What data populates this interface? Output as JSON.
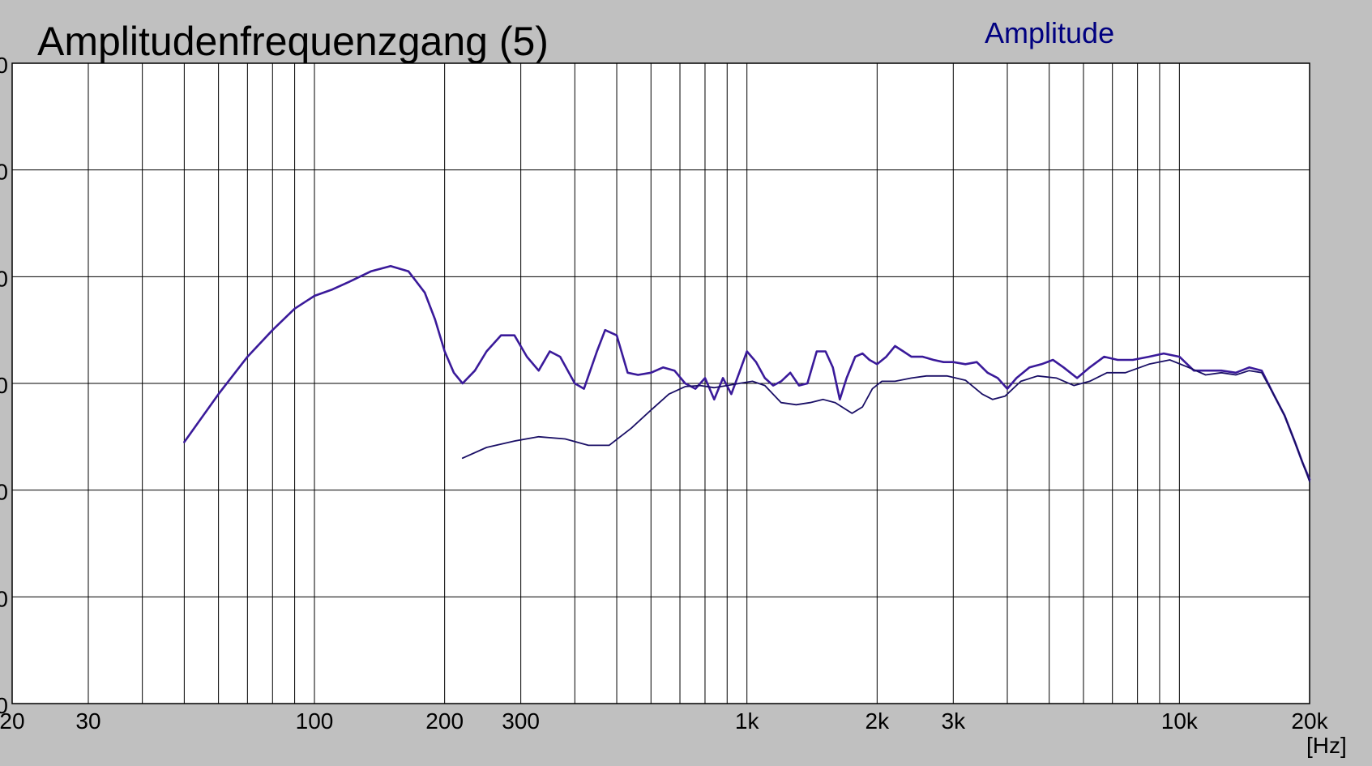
{
  "chart_data": {
    "type": "line",
    "title": "Amplitudenfrequenzgang (5)",
    "x_unit_label": "[Hz]",
    "x_scale": "log",
    "xlim": [
      20,
      20000
    ],
    "ylim": [
      0,
      6
    ],
    "y_tick_labels_visible": [
      "0",
      "0",
      "0",
      "0",
      "0",
      "0",
      "0"
    ],
    "x_ticks": [
      {
        "value": 20,
        "label": "20"
      },
      {
        "value": 30,
        "label": "30"
      },
      {
        "value": 100,
        "label": "100"
      },
      {
        "value": 200,
        "label": "200"
      },
      {
        "value": 300,
        "label": "300"
      },
      {
        "value": 1000,
        "label": "1k"
      },
      {
        "value": 2000,
        "label": "2k"
      },
      {
        "value": 3000,
        "label": "3k"
      },
      {
        "value": 10000,
        "label": "10k"
      },
      {
        "value": 20000,
        "label": "20k"
      }
    ],
    "grid": true,
    "legend": {
      "position": "top-right",
      "entries": [
        "Amplitude"
      ]
    },
    "colors": {
      "background": "#c0c0c0",
      "plot_bg": "#ffffff",
      "grid": "#000000",
      "line": "#3a1a9a",
      "legend": "#000080"
    },
    "series": [
      {
        "name": "Amplitude",
        "color": "#3a1a9a",
        "width": 2.6,
        "points": [
          [
            50,
            2.45
          ],
          [
            60,
            2.9
          ],
          [
            70,
            3.25
          ],
          [
            80,
            3.5
          ],
          [
            90,
            3.7
          ],
          [
            100,
            3.82
          ],
          [
            110,
            3.88
          ],
          [
            120,
            3.95
          ],
          [
            135,
            4.05
          ],
          [
            150,
            4.1
          ],
          [
            165,
            4.05
          ],
          [
            180,
            3.85
          ],
          [
            190,
            3.6
          ],
          [
            200,
            3.3
          ],
          [
            210,
            3.1
          ],
          [
            220,
            3.0
          ],
          [
            235,
            3.12
          ],
          [
            250,
            3.3
          ],
          [
            270,
            3.45
          ],
          [
            290,
            3.45
          ],
          [
            310,
            3.25
          ],
          [
            330,
            3.12
          ],
          [
            350,
            3.3
          ],
          [
            370,
            3.25
          ],
          [
            400,
            3.0
          ],
          [
            420,
            2.95
          ],
          [
            450,
            3.3
          ],
          [
            470,
            3.5
          ],
          [
            500,
            3.45
          ],
          [
            530,
            3.1
          ],
          [
            560,
            3.08
          ],
          [
            600,
            3.1
          ],
          [
            640,
            3.15
          ],
          [
            680,
            3.12
          ],
          [
            720,
            3.0
          ],
          [
            760,
            2.95
          ],
          [
            800,
            3.05
          ],
          [
            840,
            2.85
          ],
          [
            880,
            3.05
          ],
          [
            920,
            2.9
          ],
          [
            960,
            3.1
          ],
          [
            1000,
            3.3
          ],
          [
            1050,
            3.2
          ],
          [
            1100,
            3.05
          ],
          [
            1150,
            2.98
          ],
          [
            1200,
            3.02
          ],
          [
            1260,
            3.1
          ],
          [
            1320,
            2.98
          ],
          [
            1380,
            3.0
          ],
          [
            1450,
            3.3
          ],
          [
            1520,
            3.3
          ],
          [
            1580,
            3.15
          ],
          [
            1640,
            2.85
          ],
          [
            1700,
            3.05
          ],
          [
            1780,
            3.25
          ],
          [
            1850,
            3.28
          ],
          [
            1920,
            3.22
          ],
          [
            2000,
            3.18
          ],
          [
            2100,
            3.25
          ],
          [
            2200,
            3.35
          ],
          [
            2300,
            3.3
          ],
          [
            2400,
            3.25
          ],
          [
            2550,
            3.25
          ],
          [
            2700,
            3.22
          ],
          [
            2850,
            3.2
          ],
          [
            3000,
            3.2
          ],
          [
            3200,
            3.18
          ],
          [
            3400,
            3.2
          ],
          [
            3600,
            3.1
          ],
          [
            3800,
            3.05
          ],
          [
            4000,
            2.95
          ],
          [
            4200,
            3.05
          ],
          [
            4500,
            3.15
          ],
          [
            4800,
            3.18
          ],
          [
            5100,
            3.22
          ],
          [
            5400,
            3.15
          ],
          [
            5800,
            3.05
          ],
          [
            6200,
            3.15
          ],
          [
            6700,
            3.25
          ],
          [
            7200,
            3.22
          ],
          [
            7800,
            3.22
          ],
          [
            8500,
            3.25
          ],
          [
            9200,
            3.28
          ],
          [
            10000,
            3.25
          ],
          [
            10800,
            3.12
          ],
          [
            11500,
            3.12
          ],
          [
            12500,
            3.12
          ],
          [
            13500,
            3.1
          ],
          [
            14500,
            3.15
          ],
          [
            15500,
            3.12
          ],
          [
            16500,
            2.9
          ],
          [
            17500,
            2.7
          ],
          [
            18500,
            2.45
          ],
          [
            19300,
            2.25
          ],
          [
            20000,
            2.1
          ]
        ]
      },
      {
        "name": "",
        "color": "#1a0f66",
        "width": 1.8,
        "points": [
          [
            220,
            2.3
          ],
          [
            250,
            2.4
          ],
          [
            290,
            2.46
          ],
          [
            330,
            2.5
          ],
          [
            380,
            2.48
          ],
          [
            430,
            2.42
          ],
          [
            480,
            2.42
          ],
          [
            540,
            2.58
          ],
          [
            600,
            2.75
          ],
          [
            660,
            2.9
          ],
          [
            720,
            2.97
          ],
          [
            780,
            2.98
          ],
          [
            840,
            2.96
          ],
          [
            900,
            2.98
          ],
          [
            960,
            3.0
          ],
          [
            1030,
            3.02
          ],
          [
            1100,
            2.98
          ],
          [
            1200,
            2.82
          ],
          [
            1300,
            2.8
          ],
          [
            1400,
            2.82
          ],
          [
            1500,
            2.85
          ],
          [
            1600,
            2.82
          ],
          [
            1750,
            2.72
          ],
          [
            1850,
            2.78
          ],
          [
            1950,
            2.95
          ],
          [
            2050,
            3.02
          ],
          [
            2200,
            3.02
          ],
          [
            2400,
            3.05
          ],
          [
            2600,
            3.07
          ],
          [
            2900,
            3.07
          ],
          [
            3200,
            3.03
          ],
          [
            3500,
            2.9
          ],
          [
            3700,
            2.85
          ],
          [
            3950,
            2.88
          ],
          [
            4300,
            3.02
          ],
          [
            4700,
            3.07
          ],
          [
            5200,
            3.05
          ],
          [
            5700,
            2.98
          ],
          [
            6200,
            3.02
          ],
          [
            6800,
            3.1
          ],
          [
            7500,
            3.1
          ],
          [
            8500,
            3.18
          ],
          [
            9500,
            3.22
          ],
          [
            10500,
            3.15
          ],
          [
            11500,
            3.08
          ],
          [
            12500,
            3.1
          ],
          [
            13500,
            3.08
          ],
          [
            14500,
            3.12
          ],
          [
            15500,
            3.1
          ],
          [
            16500,
            2.9
          ],
          [
            17500,
            2.7
          ],
          [
            18500,
            2.45
          ],
          [
            19300,
            2.25
          ],
          [
            20000,
            2.08
          ]
        ]
      }
    ]
  }
}
